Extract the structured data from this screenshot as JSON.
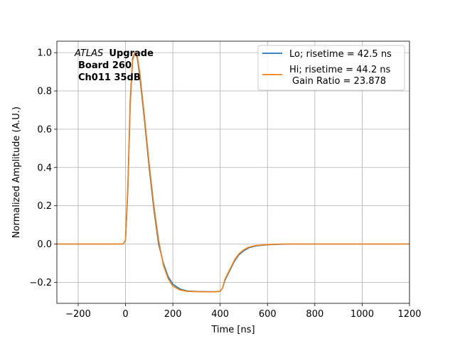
{
  "chart_data": {
    "type": "line",
    "xlabel": "Time [ns]",
    "ylabel": "Normalized Amplitude (A.U.)",
    "xlim": [
      -290,
      1200
    ],
    "ylim": [
      -0.31,
      1.06
    ],
    "xticks": [
      -200,
      0,
      200,
      400,
      600,
      800,
      1000,
      1200
    ],
    "xtick_labels": [
      "−200",
      "0",
      "200",
      "400",
      "600",
      "800",
      "1000",
      "1200"
    ],
    "yticks": [
      -0.2,
      0.0,
      0.2,
      0.4,
      0.6,
      0.8,
      1.0
    ],
    "ytick_labels": [
      "−0.2",
      "0.0",
      "0.2",
      "0.4",
      "0.6",
      "0.8",
      "1.0"
    ],
    "grid": true,
    "legend_position": "top-right",
    "annotation": {
      "experiment": "ATLAS",
      "status": "Upgrade",
      "line2": "Board 260",
      "line3": "Ch011 35dB"
    },
    "series": [
      {
        "name": "Lo; risetime = 42.5 ns",
        "color": "#1f77b4",
        "x": [
          -290,
          -200,
          -100,
          -10,
          0,
          10,
          20,
          30,
          40,
          45,
          50,
          60,
          80,
          100,
          120,
          140,
          160,
          180,
          200,
          230,
          260,
          300,
          350,
          380,
          400,
          410,
          420,
          440,
          460,
          480,
          500,
          520,
          550,
          600,
          650,
          700,
          800,
          1000,
          1200
        ],
        "y": [
          0.0,
          0.0,
          0.0,
          0.0,
          0.02,
          0.3,
          0.75,
          0.97,
          1.0,
          0.99,
          0.97,
          0.88,
          0.65,
          0.4,
          0.18,
          0.0,
          -0.1,
          -0.17,
          -0.21,
          -0.235,
          -0.245,
          -0.248,
          -0.249,
          -0.249,
          -0.247,
          -0.23,
          -0.19,
          -0.14,
          -0.09,
          -0.055,
          -0.035,
          -0.02,
          -0.01,
          -0.004,
          -0.001,
          0.0,
          0.0,
          0.0,
          0.0
        ]
      },
      {
        "name": "Hi; risetime = 44.2 ns",
        "subtitle": "Gain Ratio = 23.878",
        "color": "#ff7f0e",
        "x": [
          -290,
          -200,
          -100,
          -10,
          0,
          10,
          20,
          30,
          40,
          45,
          50,
          60,
          80,
          100,
          120,
          140,
          160,
          180,
          200,
          230,
          260,
          300,
          350,
          380,
          400,
          410,
          420,
          440,
          460,
          480,
          500,
          520,
          550,
          600,
          650,
          700,
          800,
          1000,
          1200
        ],
        "y": [
          0.0,
          0.0,
          0.0,
          0.0,
          0.02,
          0.28,
          0.72,
          0.96,
          1.0,
          0.995,
          0.98,
          0.9,
          0.67,
          0.42,
          0.2,
          0.02,
          -0.11,
          -0.18,
          -0.22,
          -0.24,
          -0.247,
          -0.249,
          -0.25,
          -0.25,
          -0.247,
          -0.23,
          -0.185,
          -0.135,
          -0.085,
          -0.05,
          -0.03,
          -0.017,
          -0.008,
          -0.003,
          0.0,
          0.0,
          0.0,
          0.0,
          0.0
        ]
      }
    ]
  }
}
